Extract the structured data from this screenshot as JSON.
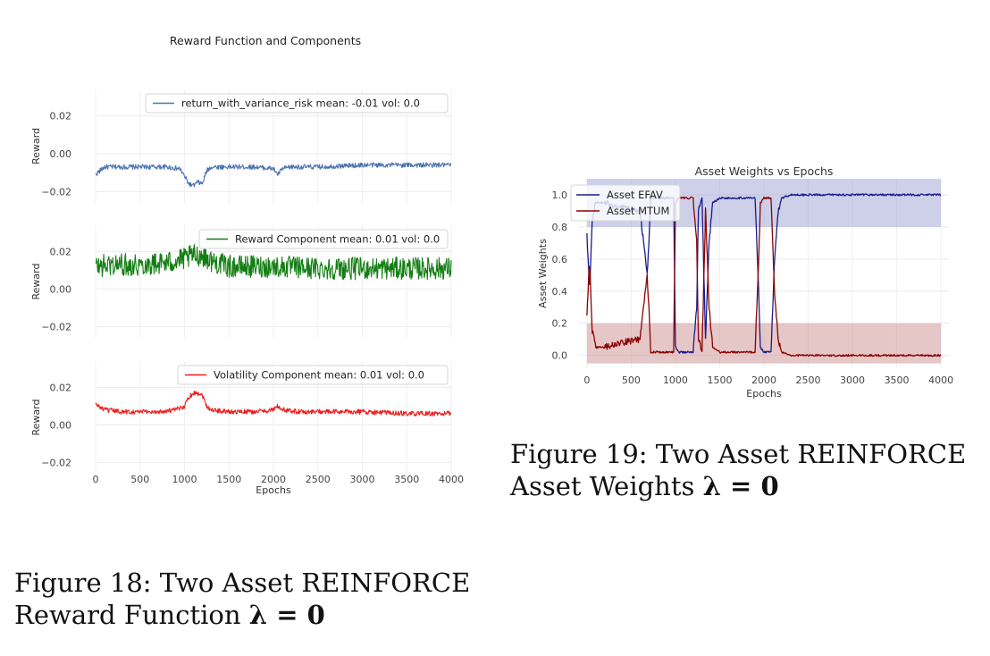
{
  "chart_data": [
    {
      "type": "line",
      "title": "Reward Function and Components",
      "xlabel": "Epochs",
      "xlim": [
        0,
        4000
      ],
      "xticks": [
        "0",
        "500",
        "1000",
        "1500",
        "2000",
        "2500",
        "3000",
        "3500",
        "4000"
      ],
      "grid": true,
      "panels": [
        {
          "ylabel": "Reward",
          "ylim": [
            -0.026,
            0.034
          ],
          "yticks": [
            "0.02",
            "0.00",
            "−0.02"
          ],
          "color": "#4c72b0",
          "legend": "return_with_variance_risk mean: -0.01 vol: 0.0",
          "legend_position": "top-right",
          "series": {
            "x": [
              0,
              100,
              200,
              400,
              600,
              800,
              950,
              1000,
              1050,
              1100,
              1150,
              1200,
              1250,
              1300,
              1400,
              1600,
              1800,
              2000,
              2050,
              2100,
              2200,
              2500,
              3000,
              3500,
              4000
            ],
            "values": [
              -0.011,
              -0.007,
              -0.007,
              -0.007,
              -0.007,
              -0.007,
              -0.008,
              -0.012,
              -0.016,
              -0.017,
              -0.015,
              -0.016,
              -0.009,
              -0.007,
              -0.007,
              -0.007,
              -0.007,
              -0.008,
              -0.011,
              -0.008,
              -0.007,
              -0.007,
              -0.006,
              -0.006,
              -0.006
            ]
          }
        },
        {
          "ylabel": "Reward",
          "ylim": [
            -0.026,
            0.034
          ],
          "yticks": [
            "0.02",
            "0.00",
            "−0.02"
          ],
          "color": "#137e13",
          "legend": "Reward Component mean: 0.01 vol: 0.0",
          "legend_position": "top-right",
          "series": {
            "x": [
              0,
              200,
              500,
              800,
              1000,
              1100,
              1200,
              1300,
              1500,
              2000,
              2500,
              3000,
              3500,
              4000
            ],
            "values": [
              0.012,
              0.013,
              0.013,
              0.014,
              0.016,
              0.018,
              0.018,
              0.015,
              0.012,
              0.012,
              0.011,
              0.011,
              0.011,
              0.011
            ]
          },
          "noise_amplitude": 0.006
        },
        {
          "ylabel": "Reward",
          "ylim": [
            -0.026,
            0.034
          ],
          "yticks": [
            "0.02",
            "0.00",
            "−0.02"
          ],
          "color": "#ee1c1c",
          "legend": "Volatility Component mean: 0.01 vol: 0.0",
          "legend_position": "top-right",
          "series": {
            "x": [
              0,
              100,
              300,
              500,
              700,
              900,
              1000,
              1050,
              1100,
              1150,
              1200,
              1250,
              1300,
              1500,
              1800,
              2000,
              2050,
              2100,
              2300,
              3000,
              3500,
              4000
            ],
            "values": [
              0.011,
              0.008,
              0.007,
              0.007,
              0.007,
              0.008,
              0.01,
              0.015,
              0.017,
              0.017,
              0.016,
              0.01,
              0.008,
              0.007,
              0.007,
              0.008,
              0.01,
              0.008,
              0.007,
              0.007,
              0.006,
              0.006
            ]
          }
        }
      ]
    },
    {
      "type": "line",
      "title": "Asset Weights vs Epochs",
      "xlabel": "Epochs",
      "ylabel": "Asset Weights",
      "xlim": [
        -100,
        4100
      ],
      "ylim": [
        -0.08,
        1.1
      ],
      "xticks": [
        "0",
        "500",
        "1000",
        "1500",
        "2000",
        "2500",
        "3000",
        "3500",
        "4000"
      ],
      "yticks": [
        "0.0",
        "0.2",
        "0.4",
        "0.6",
        "0.8",
        "1.0"
      ],
      "grid": true,
      "legend_position": "top-left",
      "series": [
        {
          "name": "Asset EFAV",
          "color": "#1a1a8c",
          "x": [
            0,
            30,
            60,
            100,
            200,
            400,
            600,
            680,
            700,
            720,
            980,
            1000,
            1030,
            1100,
            1200,
            1240,
            1260,
            1300,
            1340,
            1380,
            1420,
            1500,
            1900,
            1940,
            1960,
            2000,
            2080,
            2120,
            2160,
            2200,
            2300,
            2500,
            3000,
            3500,
            4000
          ],
          "values": [
            0.75,
            0.4,
            0.85,
            0.95,
            0.95,
            0.92,
            0.9,
            0.5,
            0.7,
            0.98,
            0.98,
            0.05,
            0.02,
            0.02,
            0.02,
            0.3,
            0.9,
            0.98,
            0.1,
            0.7,
            0.95,
            0.98,
            0.98,
            0.4,
            0.05,
            0.02,
            0.02,
            0.6,
            0.9,
            0.98,
            1.0,
            1.0,
            1.0,
            1.0,
            1.0
          ],
          "band": {
            "color": "#8a8ecb",
            "lower": 0.8,
            "upper": 1.1
          }
        },
        {
          "name": "Asset MTUM",
          "color": "#8b0000",
          "x": [
            0,
            30,
            60,
            100,
            200,
            400,
            600,
            680,
            700,
            720,
            980,
            1000,
            1030,
            1100,
            1200,
            1240,
            1260,
            1300,
            1340,
            1380,
            1420,
            1500,
            1900,
            1940,
            1960,
            2000,
            2080,
            2120,
            2160,
            2200,
            2300,
            2500,
            3000,
            3500,
            4000
          ],
          "values": [
            0.25,
            0.6,
            0.15,
            0.05,
            0.05,
            0.08,
            0.1,
            0.5,
            0.3,
            0.02,
            0.02,
            0.95,
            0.98,
            0.98,
            0.98,
            0.7,
            0.1,
            0.02,
            0.9,
            0.3,
            0.05,
            0.02,
            0.02,
            0.6,
            0.95,
            0.98,
            0.98,
            0.4,
            0.1,
            0.02,
            0.0,
            0.0,
            0.0,
            0.0,
            0.0
          ],
          "band": {
            "color": "#c47a7a",
            "lower": -0.05,
            "upper": 0.2
          }
        }
      ]
    }
  ],
  "captions": {
    "fig18_line1": "Figure 18:  Two Asset REINFORCE",
    "fig18_line2_text": "Reward Function ",
    "fig18_line2_math": "λ = 0",
    "fig19_line1": "Figure 19:  Two Asset REINFORCE",
    "fig19_line2_text": "Asset Weights ",
    "fig19_line2_math": "λ = 0"
  }
}
